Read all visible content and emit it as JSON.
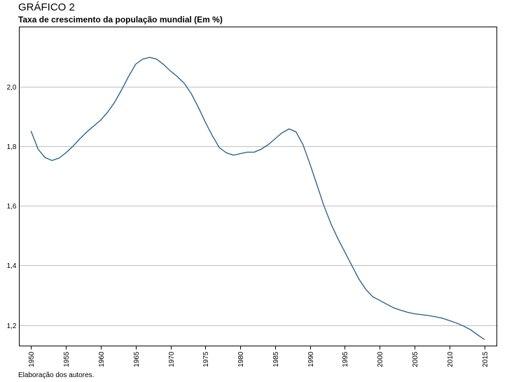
{
  "header": {
    "figure_label": "GRÁFICO 2",
    "title": "Taxa de crescimento da população mundial (Em %)"
  },
  "footer": {
    "source": "Elaboração dos autores."
  },
  "chart_data": {
    "type": "line",
    "title": "Taxa de crescimento da população mundial (Em %)",
    "xlabel": "",
    "ylabel": "",
    "xlim": [
      1948.3,
      2016.8
    ],
    "ylim": [
      1.13,
      2.2
    ],
    "grid": "horizontal",
    "x_ticks": [
      1950,
      1955,
      1960,
      1965,
      1970,
      1975,
      1980,
      1985,
      1990,
      1995,
      2000,
      2005,
      2010,
      2015
    ],
    "x_tick_labels": [
      "1950",
      "1955",
      "1960",
      "1965",
      "1970",
      "1975",
      "1980",
      "1985",
      "1990",
      "1995",
      "2000",
      "2005",
      "2010",
      "2015"
    ],
    "y_ticks": [
      1.2,
      1.4,
      1.6,
      1.8,
      2.0
    ],
    "y_tick_labels": [
      "1,2",
      "1,4",
      "1,6",
      "1,8",
      "2,0"
    ],
    "line_color": "#1f5a8a",
    "series": [
      {
        "x": [
          1950,
          1951,
          1952,
          1953,
          1954,
          1955,
          1956,
          1957,
          1958,
          1959,
          1960,
          1961,
          1962,
          1963,
          1964,
          1965,
          1966,
          1967,
          1968,
          1969,
          1970,
          1971,
          1972,
          1973,
          1974,
          1975,
          1976,
          1977,
          1978,
          1979,
          1980,
          1981,
          1982,
          1983,
          1984,
          1985,
          1986,
          1987,
          1988,
          1989,
          1990,
          1991,
          1992,
          1993,
          1994,
          1995,
          1996,
          1997,
          1998,
          1999,
          2000,
          2001,
          2002,
          2003,
          2004,
          2005,
          2006,
          2007,
          2008,
          2009,
          2010,
          2011,
          2012,
          2013,
          2014,
          2015
        ],
        "values": [
          1.85,
          1.79,
          1.762,
          1.752,
          1.76,
          1.778,
          1.8,
          1.825,
          1.848,
          1.868,
          1.888,
          1.915,
          1.948,
          1.99,
          2.035,
          2.075,
          2.092,
          2.098,
          2.092,
          2.074,
          2.052,
          2.033,
          2.01,
          1.975,
          1.93,
          1.88,
          1.835,
          1.795,
          1.778,
          1.77,
          1.775,
          1.78,
          1.78,
          1.79,
          1.805,
          1.825,
          1.845,
          1.858,
          1.848,
          1.805,
          1.74,
          1.67,
          1.6,
          1.54,
          1.49,
          1.445,
          1.4,
          1.355,
          1.32,
          1.295,
          1.283,
          1.27,
          1.258,
          1.25,
          1.243,
          1.238,
          1.235,
          1.232,
          1.228,
          1.223,
          1.215,
          1.207,
          1.197,
          1.185,
          1.168,
          1.152
        ]
      }
    ]
  }
}
